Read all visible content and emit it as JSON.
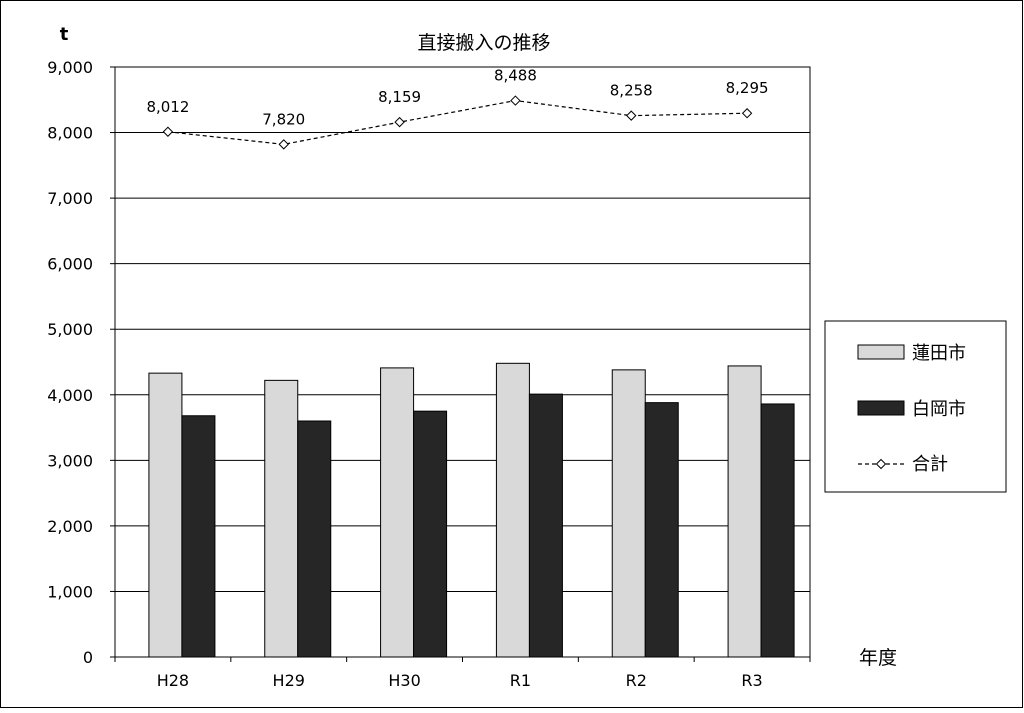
{
  "chart_data": {
    "type": "bar",
    "title": "直接搬入の推移",
    "ylabel": "t",
    "xlabel": "年度",
    "categories": [
      "H28",
      "H29",
      "H30",
      "R1",
      "R2",
      "R3"
    ],
    "ylim": [
      0,
      9000
    ],
    "yticks": [
      0,
      1000,
      2000,
      3000,
      4000,
      5000,
      6000,
      7000,
      8000,
      9000
    ],
    "ytick_labels": [
      "0",
      "1,000",
      "2,000",
      "3,000",
      "4,000",
      "5,000",
      "6,000",
      "7,000",
      "8,000",
      "9,000"
    ],
    "grid": true,
    "legend_position": "right",
    "series": [
      {
        "name": "蓮田市",
        "type": "bar",
        "color": "#d9d9d9",
        "values": [
          4330,
          4220,
          4410,
          4480,
          4380,
          4440
        ]
      },
      {
        "name": "白岡市",
        "type": "bar",
        "color": "#262626",
        "values": [
          3680,
          3600,
          3750,
          4010,
          3880,
          3860
        ]
      },
      {
        "name": "合計",
        "type": "line",
        "style": "dashed",
        "marker": "diamond",
        "color": "#000000",
        "values": [
          8012,
          7820,
          8159,
          8488,
          8258,
          8295
        ],
        "data_labels": [
          "8,012",
          "7,820",
          "8,159",
          "8,488",
          "8,258",
          "8,295"
        ]
      }
    ]
  }
}
